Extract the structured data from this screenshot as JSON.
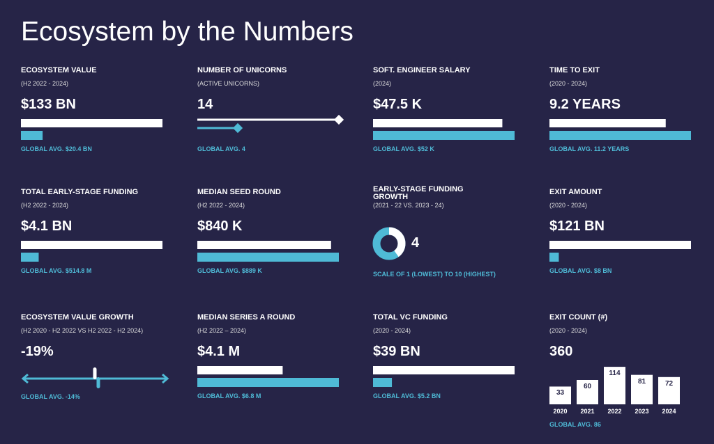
{
  "title": "Ecosystem by the Numbers",
  "tiles": [
    {
      "kind": "bars",
      "label": "ECOSYSTEM VALUE",
      "subtitle": "(H2 2022 - 2024)",
      "value_label": "$133 BN",
      "value": 133,
      "avg_label": "GLOBAL AVG. $20.4 BN",
      "avg": 20.4
    },
    {
      "kind": "line",
      "label": "NUMBER OF UNICORNS",
      "subtitle": "(ACTIVE UNICORNS)",
      "value": 14,
      "avg_label": "GLOBAL AVG. 4",
      "avg": 4
    },
    {
      "kind": "bars",
      "label": "SOFT. ENGINEER SALARY",
      "subtitle": "(2024)",
      "value_label": "$47.5 K",
      "value": 47.5,
      "avg_label": "GLOBAL AVG. $52 K",
      "avg": 52
    },
    {
      "kind": "bars",
      "label": "TIME TO EXIT",
      "subtitle": "(2020 - 2024)",
      "value_label": "9.2 YEARS",
      "value": 9.2,
      "avg_label": "GLOBAL AVG. 11.2 YEARS",
      "avg": 11.2
    },
    {
      "kind": "bars",
      "label": "TOTAL EARLY-STAGE FUNDING",
      "subtitle": "(H2 2022 - 2024)",
      "value_label": "$4.1 BN",
      "value": 4100,
      "avg_label": "GLOBAL AVG. $514.8 M",
      "avg": 514.8
    },
    {
      "kind": "bars",
      "label": "MEDIAN SEED ROUND",
      "subtitle": "(H2 2022 - 2024)",
      "value_label": "$840 K",
      "value": 840,
      "avg_label": "GLOBAL AVG. $889 K",
      "avg": 889
    },
    {
      "kind": "donut",
      "label": "EARLY-STAGE FUNDING GROWTH",
      "subtitle": "(2021 - 22 VS. 2023 - 24)",
      "value": 4,
      "note": "SCALE OF 1 (LOWEST) TO 10 (HIGHEST)",
      "scale_min": 1,
      "scale_max": 10
    },
    {
      "kind": "bars",
      "label": "EXIT AMOUNT",
      "subtitle": "(2020 - 2024)",
      "value_label": "$121 BN",
      "value": 121,
      "avg_label": "GLOBAL AVG. $8 BN",
      "avg": 8
    },
    {
      "kind": "slider",
      "label": "ECOSYSTEM VALUE GROWTH",
      "subtitle": "(H2 2020 - H2 2022 VS H2 2022 - H2 2024)",
      "value_label": "-19%",
      "value": -19,
      "avg_label": "GLOBAL AVG. -14%",
      "avg": -14
    },
    {
      "kind": "bars",
      "label": "MEDIAN SERIES A ROUND",
      "subtitle": "(H2 2022 – 2024)",
      "value_label": "$4.1 M",
      "value": 4.1,
      "avg_label": "GLOBAL AVG. $6.8 M",
      "avg": 6.8
    },
    {
      "kind": "bars",
      "label": "TOTAL VC FUNDING",
      "subtitle": "(2020 - 2024)",
      "value_label": "$39 BN",
      "value": 39,
      "avg_label": "GLOBAL AVG. $5.2 BN",
      "avg": 5.2
    },
    {
      "kind": "columns",
      "label": "EXIT COUNT (#)",
      "subtitle": "(2020 - 2024)",
      "value": 360,
      "categories": [
        "2020",
        "2021",
        "2022",
        "2023",
        "2024"
      ],
      "values": [
        33,
        60,
        114,
        81,
        72
      ],
      "avg_label": "GLOBAL AVG. 86",
      "avg": 86
    }
  ]
}
